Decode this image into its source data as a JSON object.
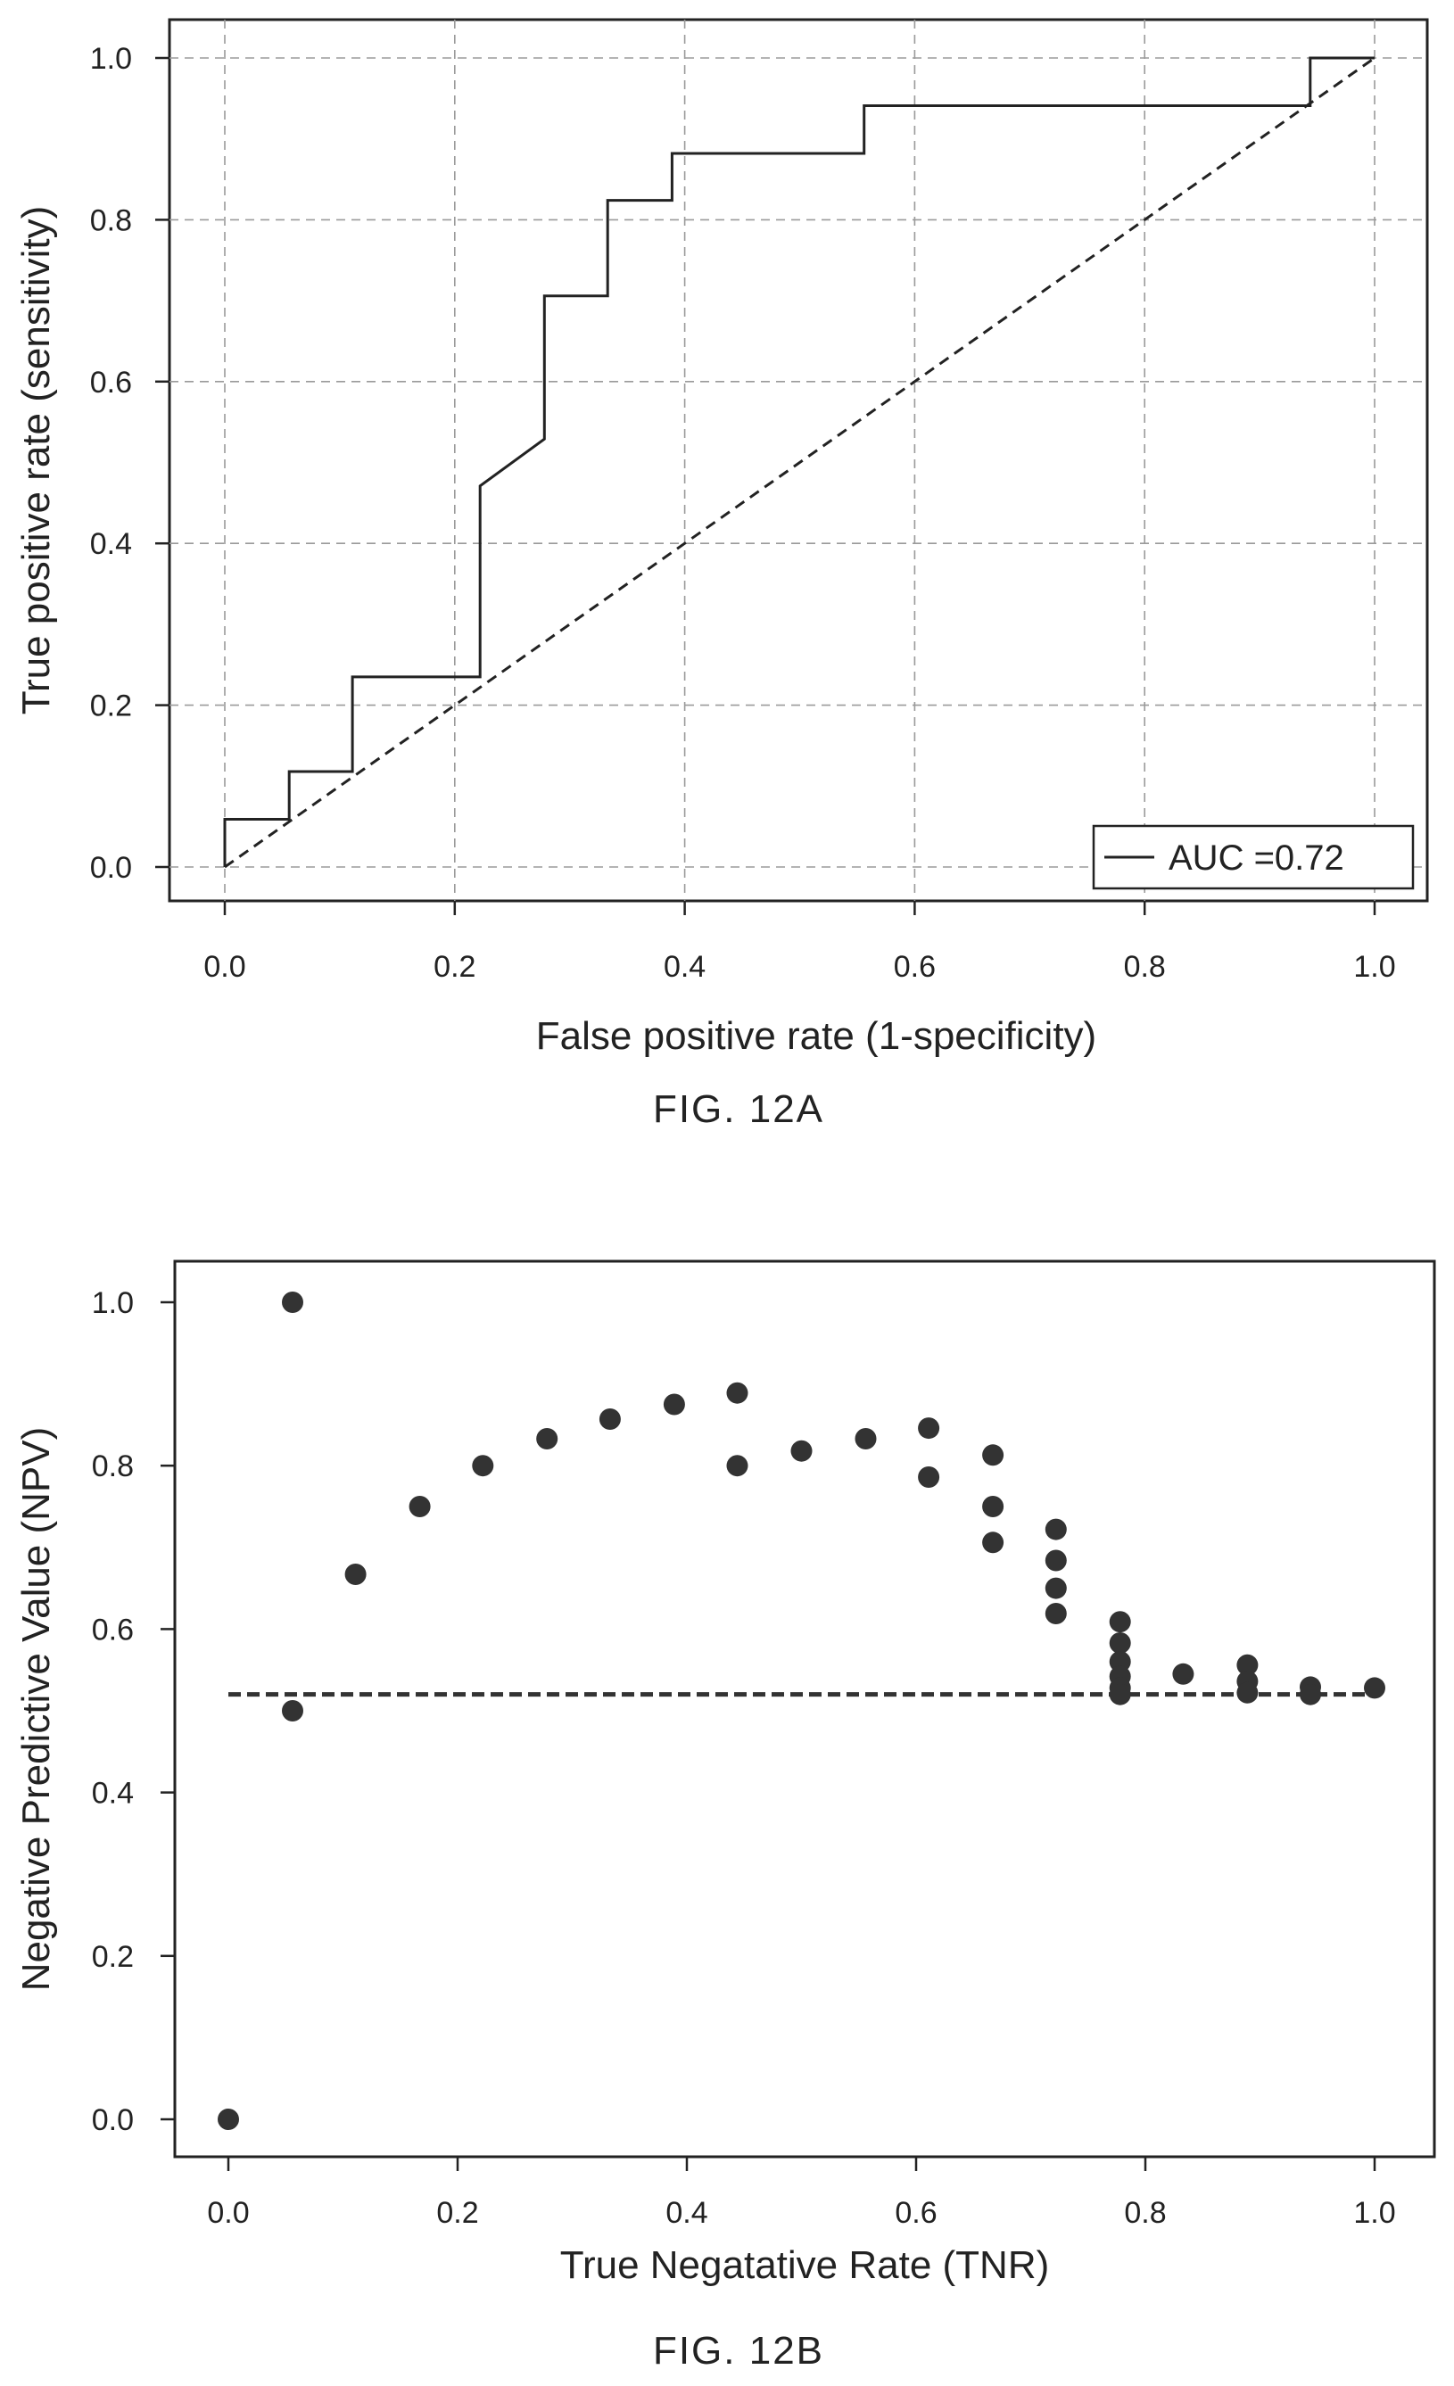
{
  "chart_data": [
    {
      "type": "line",
      "xlabel": "False positive rate (1-specificity)",
      "ylabel": "True positive rate (sensitivity)",
      "caption": "FIG. 12A",
      "xlim": [
        0.0,
        1.0
      ],
      "ylim": [
        0.0,
        1.0
      ],
      "xticks": [
        "0.0",
        "0.2",
        "0.4",
        "0.6",
        "0.8",
        "1.0"
      ],
      "yticks": [
        "0.0",
        "0.2",
        "0.4",
        "0.6",
        "0.8",
        "1.0"
      ],
      "grid": true,
      "legend_position": "bottom-right",
      "series": [
        {
          "name": "AUC =0.72",
          "style": "solid",
          "color": "#222222",
          "x": [
            0.0,
            0.0,
            0.056,
            0.056,
            0.111,
            0.111,
            0.222,
            0.222,
            0.278,
            0.278,
            0.333,
            0.333,
            0.389,
            0.389,
            0.556,
            0.556,
            0.944,
            0.944,
            1.0
          ],
          "y": [
            0.0,
            0.059,
            0.059,
            0.118,
            0.118,
            0.235,
            0.235,
            0.471,
            0.529,
            0.706,
            0.706,
            0.824,
            0.824,
            0.882,
            0.882,
            0.941,
            0.941,
            1.0,
            1.0
          ]
        },
        {
          "name": "",
          "style": "dashed",
          "color": "#222222",
          "x": [
            0.0,
            1.0
          ],
          "y": [
            0.0,
            1.0
          ]
        }
      ]
    },
    {
      "type": "scatter",
      "xlabel": "True Negatative Rate (TNR)",
      "ylabel": "Negative Predictive Value (NPV)",
      "caption": "FIG. 12B",
      "xlim": [
        0.0,
        1.0
      ],
      "ylim": [
        0.0,
        1.0
      ],
      "xticks": [
        "0.0",
        "0.2",
        "0.4",
        "0.6",
        "0.8",
        "1.0"
      ],
      "yticks": [
        "0.0",
        "0.2",
        "0.4",
        "0.6",
        "0.8",
        "1.0"
      ],
      "grid": false,
      "reference_line": {
        "y": 0.52,
        "style": "dashed"
      },
      "series": [
        {
          "name": "",
          "color": "#333333",
          "x": [
            0.0,
            0.056,
            0.056,
            0.111,
            0.167,
            0.222,
            0.278,
            0.333,
            0.389,
            0.444,
            0.444,
            0.5,
            0.556,
            0.611,
            0.611,
            0.667,
            0.667,
            0.667,
            0.722,
            0.722,
            0.722,
            0.722,
            0.778,
            0.778,
            0.778,
            0.778,
            0.778,
            0.778,
            0.833,
            0.889,
            0.889,
            0.889,
            0.944,
            0.944,
            1.0
          ],
          "y": [
            0.0,
            1.0,
            0.5,
            0.667,
            0.75,
            0.8,
            0.833,
            0.857,
            0.875,
            0.889,
            0.8,
            0.818,
            0.833,
            0.846,
            0.786,
            0.813,
            0.75,
            0.706,
            0.722,
            0.684,
            0.65,
            0.619,
            0.609,
            0.583,
            0.56,
            0.542,
            0.528,
            0.52,
            0.545,
            0.556,
            0.536,
            0.522,
            0.529,
            0.52,
            0.528
          ]
        }
      ]
    }
  ]
}
